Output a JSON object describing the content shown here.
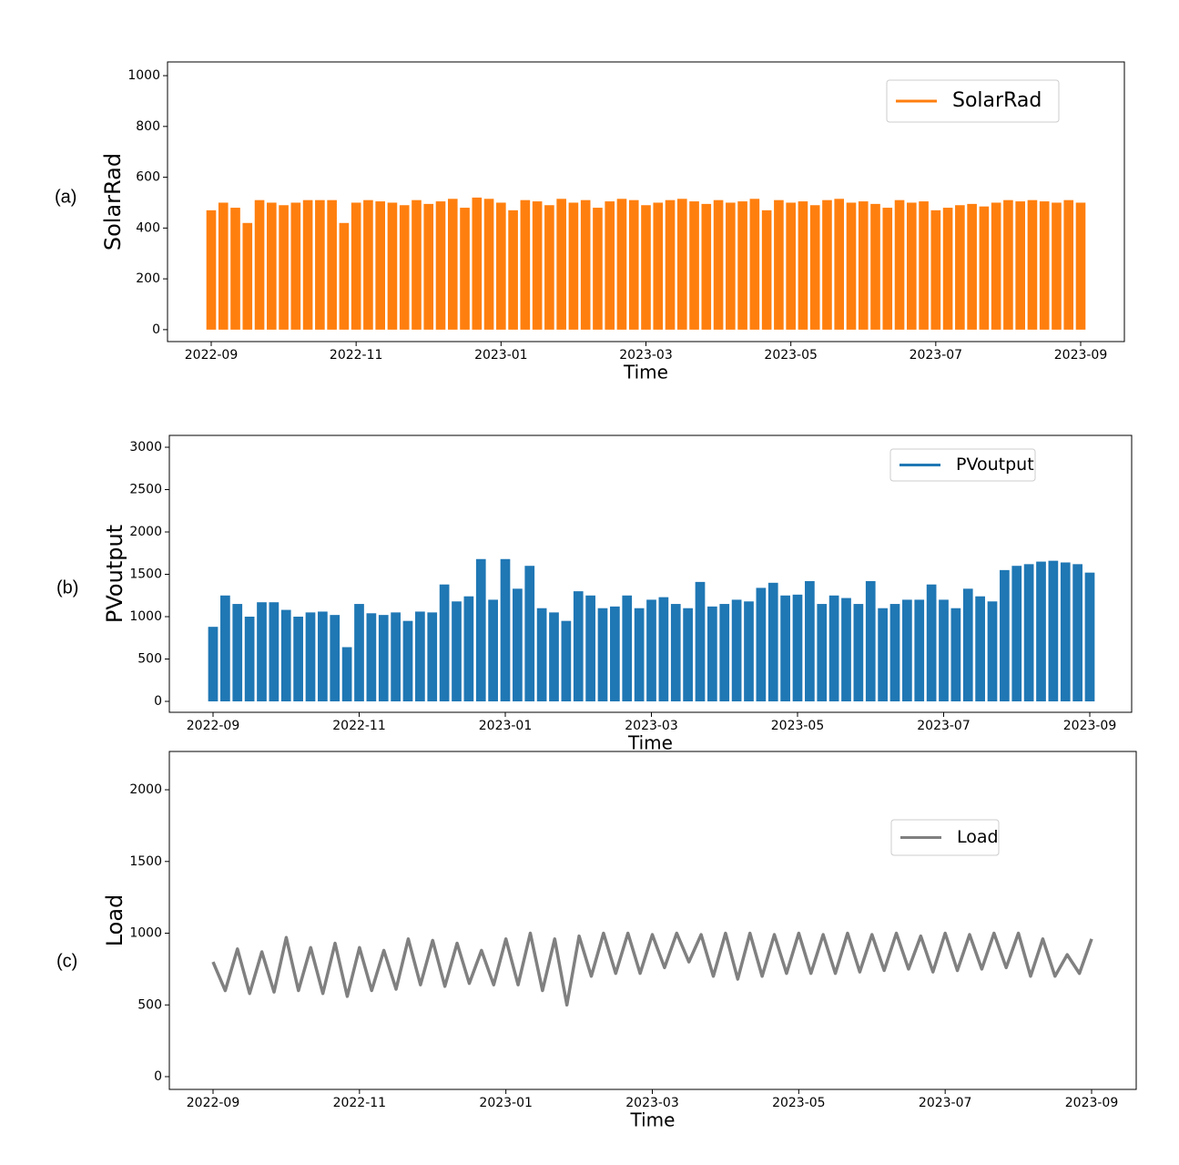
{
  "chart_data": [
    {
      "type": "bar",
      "panel_label": "(a)",
      "ylabel": "SolarRad",
      "xlabel": "Time",
      "series": [
        {
          "name": "SolarRad",
          "color": "#ff7f0e",
          "values": [
            470,
            500,
            480,
            420,
            510,
            500,
            490,
            500,
            510,
            510,
            510,
            420,
            500,
            510,
            505,
            500,
            490,
            510,
            495,
            505,
            515,
            480,
            520,
            515,
            500,
            470,
            510,
            505,
            490,
            515,
            500,
            510,
            480,
            505,
            515,
            510,
            490,
            500,
            510,
            515,
            505,
            495,
            510,
            500,
            505,
            515,
            470,
            510,
            500,
            505,
            490,
            510,
            515,
            500,
            505,
            495,
            480,
            510,
            500,
            505,
            470,
            480,
            490,
            495,
            485,
            500,
            510,
            505,
            510,
            505,
            500,
            510,
            500
          ]
        }
      ],
      "xlim": [
        "2022-09",
        "2023-09"
      ],
      "xticks": [
        "2022-09",
        "2022-11",
        "2023-01",
        "2023-03",
        "2023-05",
        "2023-07",
        "2023-09"
      ],
      "ylim": [
        -47,
        1054
      ],
      "yticks": [
        0,
        200,
        400,
        600,
        800,
        1000
      ],
      "legend": "upper right"
    },
    {
      "type": "bar",
      "panel_label": "(b)",
      "ylabel": "PVoutput",
      "xlabel": "Time",
      "series": [
        {
          "name": "PVoutput",
          "color": "#1f77b4",
          "values": [
            880,
            1250,
            1150,
            1000,
            1170,
            1170,
            1080,
            1000,
            1050,
            1060,
            1020,
            640,
            1150,
            1040,
            1020,
            1050,
            950,
            1060,
            1050,
            1380,
            1180,
            1240,
            1680,
            1200,
            1680,
            1330,
            1600,
            1100,
            1050,
            950,
            1300,
            1250,
            1100,
            1120,
            1250,
            1100,
            1200,
            1230,
            1150,
            1100,
            1410,
            1120,
            1150,
            1200,
            1180,
            1340,
            1400,
            1250,
            1260,
            1420,
            1150,
            1250,
            1220,
            1150,
            1420,
            1100,
            1150,
            1200,
            1200,
            1380,
            1200,
            1100,
            1330,
            1240,
            1180,
            1550,
            1600,
            1620,
            1650,
            1660,
            1640,
            1620,
            1520
          ]
        }
      ],
      "xlim": [
        "2022-09",
        "2023-09"
      ],
      "xticks": [
        "2022-09",
        "2022-11",
        "2023-01",
        "2023-03",
        "2023-05",
        "2023-07",
        "2023-09"
      ],
      "ylim": [
        -129,
        3140
      ],
      "yticks": [
        0,
        500,
        1000,
        1500,
        2000,
        2500,
        3000
      ],
      "legend": "upper right"
    },
    {
      "type": "line",
      "panel_label": "(c)",
      "ylabel": "Load",
      "xlabel": "Time",
      "series": [
        {
          "name": "Load",
          "color": "#808080",
          "values": [
            800,
            600,
            890,
            580,
            870,
            590,
            970,
            600,
            900,
            580,
            930,
            560,
            900,
            600,
            880,
            610,
            960,
            640,
            950,
            630,
            930,
            650,
            880,
            640,
            960,
            640,
            1000,
            600,
            960,
            500,
            980,
            700,
            1000,
            720,
            1000,
            720,
            990,
            760,
            1000,
            800,
            990,
            700,
            1000,
            680,
            1000,
            700,
            990,
            720,
            1000,
            720,
            990,
            720,
            1000,
            730,
            990,
            740,
            1000,
            750,
            980,
            730,
            1000,
            740,
            990,
            750,
            1000,
            760,
            1000,
            700,
            960,
            700,
            850,
            720,
            960
          ]
        }
      ],
      "xlim": [
        "2022-09",
        "2023-09"
      ],
      "xticks": [
        "2022-09",
        "2022-11",
        "2023-01",
        "2023-03",
        "2023-05",
        "2023-07",
        "2023-09"
      ],
      "ylim": [
        -89,
        2267
      ],
      "yticks": [
        0,
        500,
        1000,
        1500,
        2000
      ],
      "legend": "upper right"
    }
  ]
}
